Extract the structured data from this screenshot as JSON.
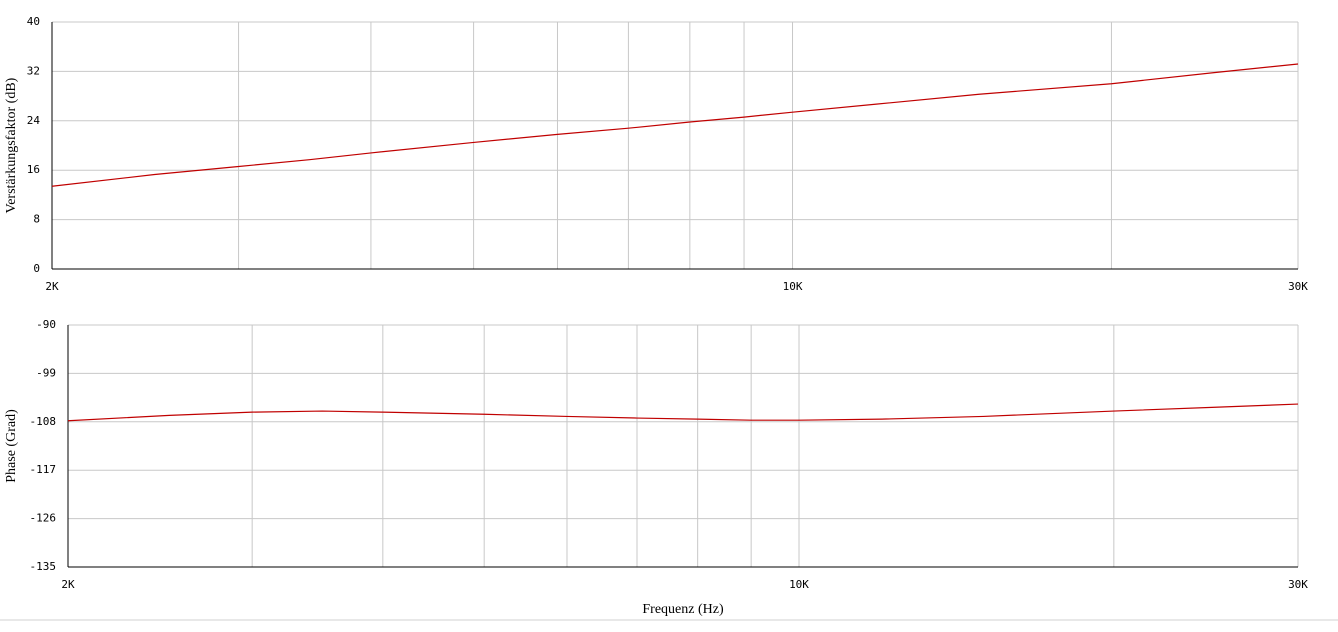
{
  "chart_data": [
    {
      "type": "line",
      "ylabel": "Verstärkungsfaktor (dB)",
      "x": [
        2000,
        2500,
        3000,
        3500,
        4000,
        5000,
        6000,
        7000,
        8000,
        9000,
        10000,
        12000,
        15000,
        20000,
        25000,
        30000
      ],
      "values": [
        13.4,
        15.3,
        16.6,
        17.7,
        18.8,
        20.5,
        21.8,
        22.8,
        23.8,
        24.6,
        25.4,
        26.7,
        28.3,
        30.0,
        31.8,
        33.2
      ],
      "color": "#c00000",
      "xscale": "log",
      "grid": true,
      "xlim": [
        2000,
        30000
      ],
      "xticks": [
        {
          "value": 2000,
          "label": "2K"
        },
        {
          "value": 10000,
          "label": "10K"
        },
        {
          "value": 30000,
          "label": "30K"
        }
      ],
      "xminor": [
        3000,
        4000,
        5000,
        6000,
        7000,
        8000,
        9000,
        20000
      ],
      "ylim": [
        0,
        40
      ],
      "yticks": [
        0,
        8,
        16,
        24,
        32,
        40
      ]
    },
    {
      "type": "line",
      "ylabel": "Phase (Grad)",
      "xlabel": "Frequenz (Hz)",
      "x": [
        2000,
        2500,
        3000,
        3500,
        4000,
        5000,
        6000,
        7000,
        8000,
        9000,
        10000,
        12000,
        15000,
        20000,
        25000,
        30000
      ],
      "values": [
        -107.8,
        -106.8,
        -106.2,
        -106.0,
        -106.2,
        -106.6,
        -107.0,
        -107.3,
        -107.5,
        -107.7,
        -107.7,
        -107.5,
        -107.0,
        -106.0,
        -105.3,
        -104.7
      ],
      "color": "#c00000",
      "xscale": "log",
      "grid": true,
      "xlim": [
        2000,
        30000
      ],
      "xticks": [
        {
          "value": 2000,
          "label": "2K"
        },
        {
          "value": 10000,
          "label": "10K"
        },
        {
          "value": 30000,
          "label": "30K"
        }
      ],
      "xminor": [
        3000,
        4000,
        5000,
        6000,
        7000,
        8000,
        9000,
        20000
      ],
      "ylim": [
        -135,
        -90
      ],
      "yticks": [
        -135,
        -126,
        -117,
        -108,
        -99,
        -90
      ]
    }
  ]
}
